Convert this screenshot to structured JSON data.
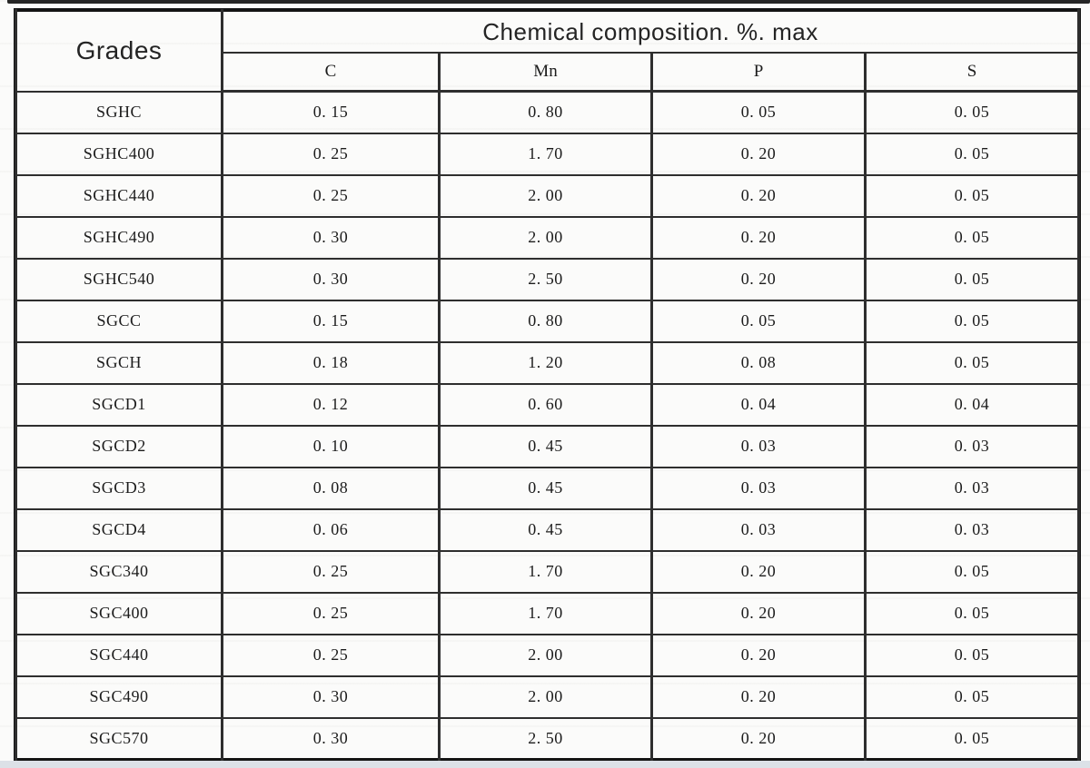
{
  "table": {
    "corner_header": "Grades",
    "group_header": "Chemical composition. %. max",
    "columns": [
      "C",
      "Mn",
      "P",
      "S"
    ],
    "rows": [
      {
        "grade": "SGHC",
        "values": [
          "0. 15",
          "0. 80",
          "0. 05",
          "0. 05"
        ]
      },
      {
        "grade": "SGHC400",
        "values": [
          "0. 25",
          "1. 70",
          "0. 20",
          "0. 05"
        ]
      },
      {
        "grade": "SGHC440",
        "values": [
          "0. 25",
          "2. 00",
          "0. 20",
          "0. 05"
        ]
      },
      {
        "grade": "SGHC490",
        "values": [
          "0. 30",
          "2. 00",
          "0. 20",
          "0. 05"
        ]
      },
      {
        "grade": "SGHC540",
        "values": [
          "0. 30",
          "2. 50",
          "0. 20",
          "0. 05"
        ]
      },
      {
        "grade": "SGCC",
        "values": [
          "0. 15",
          "0. 80",
          "0. 05",
          "0. 05"
        ]
      },
      {
        "grade": "SGCH",
        "values": [
          "0. 18",
          "1. 20",
          "0. 08",
          "0. 05"
        ]
      },
      {
        "grade": "SGCD1",
        "values": [
          "0. 12",
          "0. 60",
          "0. 04",
          "0. 04"
        ]
      },
      {
        "grade": "SGCD2",
        "values": [
          "0. 10",
          "0. 45",
          "0. 03",
          "0. 03"
        ]
      },
      {
        "grade": "SGCD3",
        "values": [
          "0. 08",
          "0. 45",
          "0. 03",
          "0. 03"
        ]
      },
      {
        "grade": "SGCD4",
        "values": [
          "0. 06",
          "0. 45",
          "0. 03",
          "0. 03"
        ]
      },
      {
        "grade": "SGC340",
        "values": [
          "0. 25",
          "1. 70",
          "0. 20",
          "0. 05"
        ]
      },
      {
        "grade": "SGC400",
        "values": [
          "0. 25",
          "1. 70",
          "0. 20",
          "0. 05"
        ]
      },
      {
        "grade": "SGC440",
        "values": [
          "0. 25",
          "2. 00",
          "0. 20",
          "0. 05"
        ]
      },
      {
        "grade": "SGC490",
        "values": [
          "0. 30",
          "2. 00",
          "0. 20",
          "0. 05"
        ]
      },
      {
        "grade": "SGC570",
        "values": [
          "0. 30",
          "2. 50",
          "0. 20",
          "0. 05"
        ]
      }
    ]
  },
  "colors": {
    "page_background": "#fbfbfa",
    "table_border": "#2e2e2e",
    "outer_frame": "#141414",
    "text": "#1c1c1c",
    "top_scan_band": "#262626",
    "bottom_scan_strip": "#dce1e7"
  }
}
